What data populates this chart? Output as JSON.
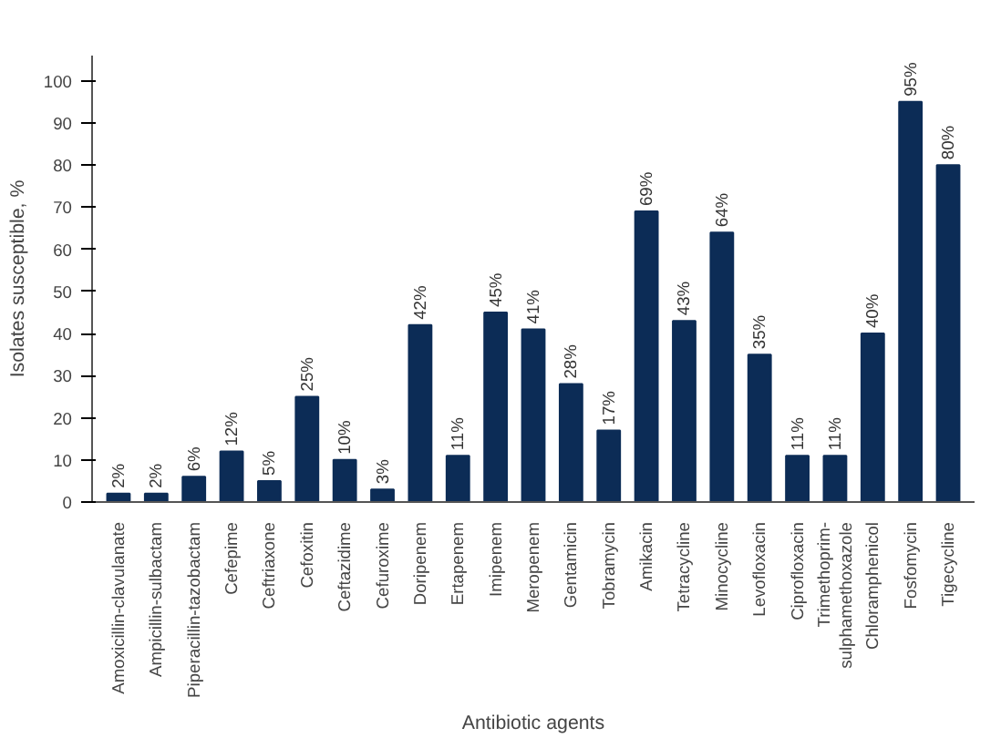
{
  "chart_data": {
    "type": "bar",
    "xlabel": "Antibiotic agents",
    "ylabel": "Isolates susceptible, %",
    "categories": [
      "Amoxicillin-clavulanate",
      "Ampicillin-sulbactam",
      "Piperacillin-tazobactam",
      "Cefepime",
      "Ceftriaxone",
      "Cefoxitin",
      "Ceftazidime",
      "Cefuroxime",
      "Doripenem",
      "Ertapenem",
      "Imipenem",
      "Meropenem",
      "Gentamicin",
      "Tobramycin",
      "Amikacin",
      "Tetracycline",
      "Minocycline",
      "Levofloxacin",
      "Ciprofloxacin",
      "Trimethoprim-\nsulphamethoxazole",
      "Chloramphenicol",
      "Fosfomycin",
      "Tigecycline"
    ],
    "values": [
      2,
      2,
      6,
      12,
      5,
      25,
      10,
      3,
      42,
      11,
      45,
      41,
      28,
      17,
      69,
      43,
      64,
      35,
      11,
      11,
      40,
      95,
      80
    ],
    "value_labels": [
      "2%",
      "2%",
      "6%",
      "12%",
      "5%",
      "25%",
      "10%",
      "3%",
      "42%",
      "11%",
      "45%",
      "41%",
      "28%",
      "17%",
      "69%",
      "43%",
      "64%",
      "35%",
      "11%",
      "11%",
      "40%",
      "95%",
      "80%"
    ],
    "color": "#0c2c56",
    "ylim": [
      0,
      106
    ],
    "yticks": [
      0,
      10,
      20,
      30,
      40,
      50,
      60,
      70,
      80,
      90,
      100
    ],
    "grid": false
  }
}
